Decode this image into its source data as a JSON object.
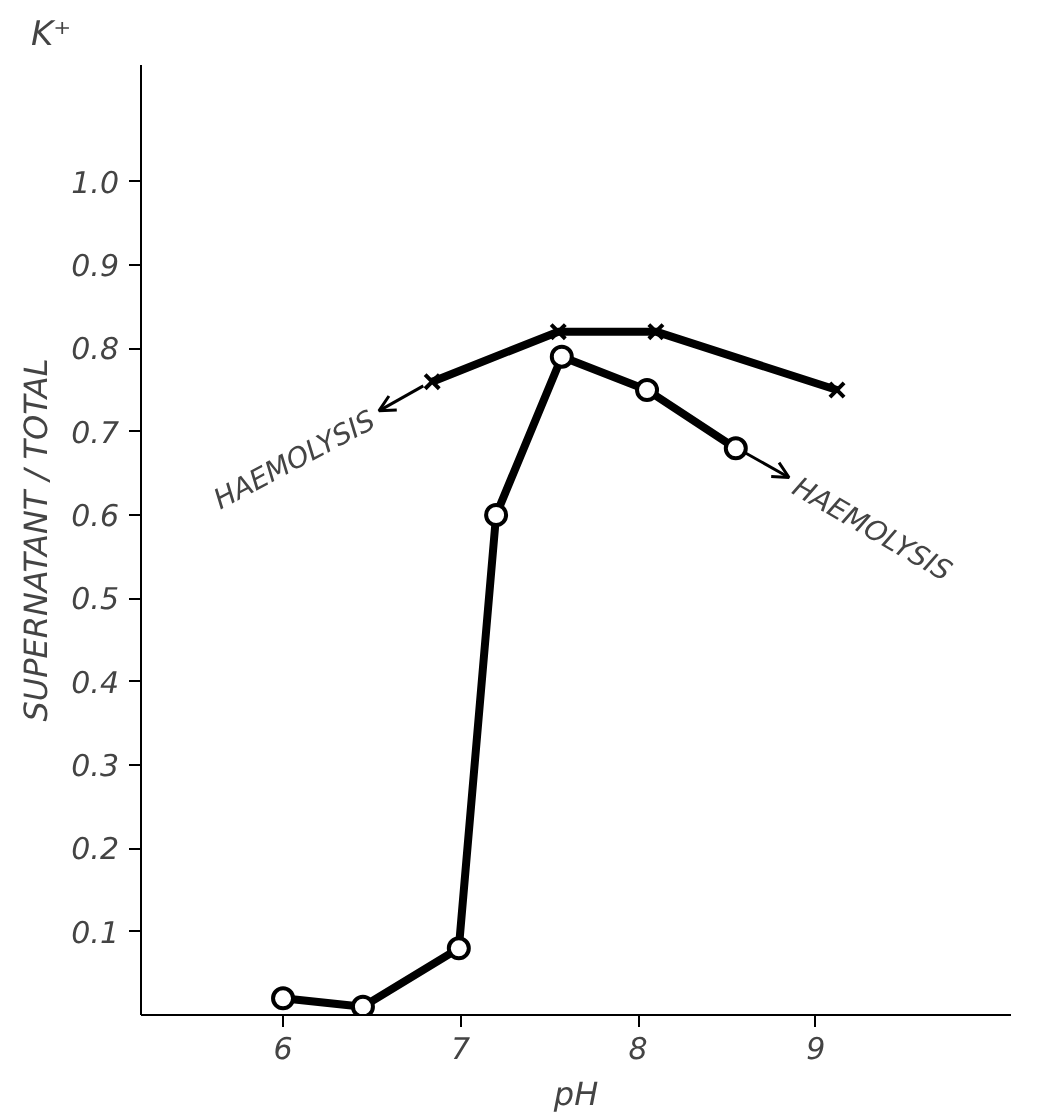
{
  "chart_data": {
    "type": "line",
    "title": "K⁺",
    "xlabel": "pH",
    "ylabel": "SUPERNATANT / TOTAL",
    "xlim": [
      5.2,
      10.1
    ],
    "ylim": [
      0,
      1.14
    ],
    "xticks": [
      6,
      7,
      8,
      9
    ],
    "yticks": [
      0.1,
      0.2,
      0.3,
      0.4,
      0.5,
      0.6,
      0.7,
      0.8,
      0.9,
      {
        "value": 1.0,
        "label": "1.0"
      }
    ],
    "grid": false,
    "line_style": "solid",
    "series": [
      {
        "color": "#000000",
        "marker": "circle",
        "x": [
          6.0,
          6.45,
          6.99,
          7.2,
          7.57,
          8.05,
          8.55
        ],
        "values": [
          0.02,
          0.01,
          0.08,
          0.6,
          0.79,
          0.75,
          0.68
        ]
      },
      {
        "color": "#000000",
        "marker": "cross",
        "x": [
          6.84,
          7.55,
          8.1,
          9.12
        ],
        "values": [
          0.76,
          0.82,
          0.82,
          0.75
        ]
      }
    ],
    "annotations": [
      {
        "text": "HAEMOLYSIS",
        "x": 6.84,
        "y": 0.76
      },
      {
        "text": "HAEMOLYSIS",
        "x": 8.55,
        "y": 0.68
      }
    ]
  }
}
